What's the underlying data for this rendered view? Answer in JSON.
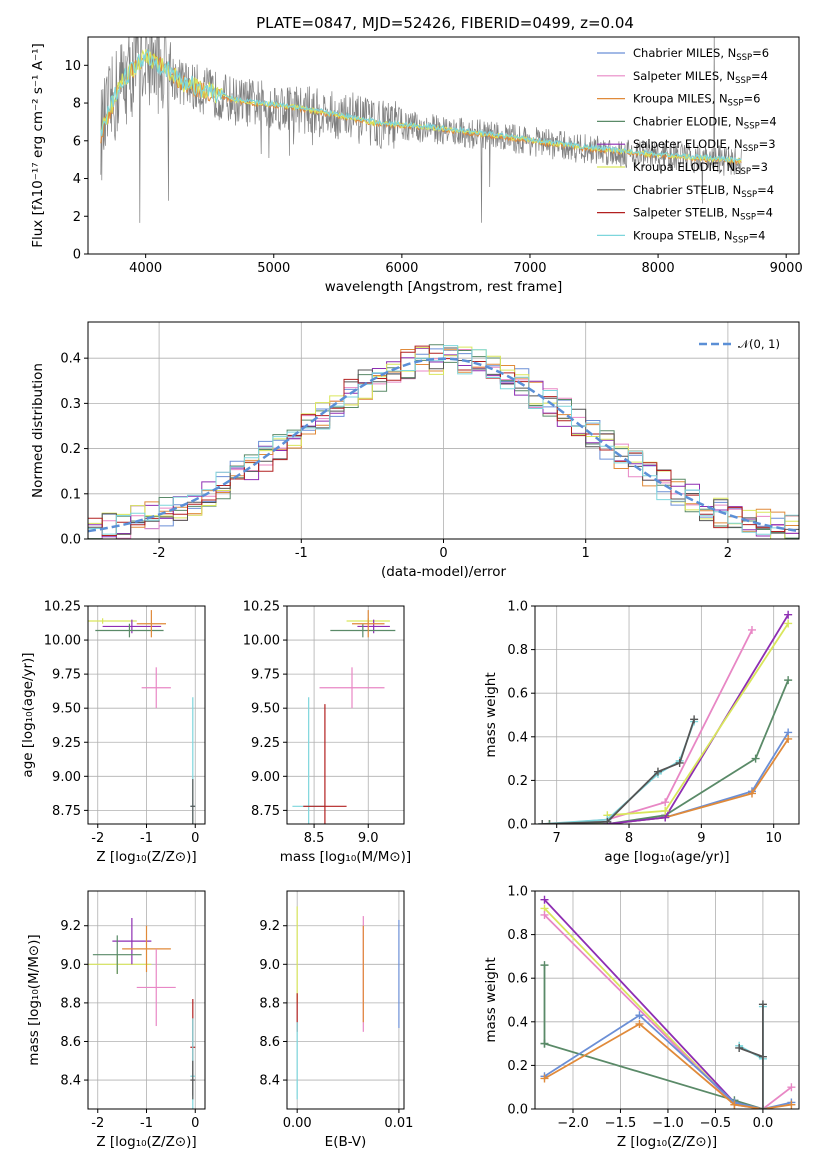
{
  "title": "PLATE=0847, MJD=52426, FIBERID=0499, z=0.04",
  "legend_entries": [
    {
      "label": "Chabrier MILES, N",
      "sub": "SSP",
      "tail": "=6",
      "color": "#6b8fd6"
    },
    {
      "label": "Salpeter MILES, N",
      "sub": "SSP",
      "tail": "=4",
      "color": "#e887c5"
    },
    {
      "label": "Kroupa MILES, N",
      "sub": "SSP",
      "tail": "=6",
      "color": "#e08a3a"
    },
    {
      "label": "Chabrier ELODIE, N",
      "sub": "SSP",
      "tail": "=4",
      "color": "#5a8a68"
    },
    {
      "label": "Salpeter ELODIE, N",
      "sub": "SSP",
      "tail": "=3",
      "color": "#8e2eb3"
    },
    {
      "label": "Kroupa ELODIE, N",
      "sub": "SSP",
      "tail": "=3",
      "color": "#d9e65c"
    },
    {
      "label": "Chabrier STELIB, N",
      "sub": "SSP",
      "tail": "=4",
      "color": "#555555"
    },
    {
      "label": "Salpeter STELIB, N",
      "sub": "SSP",
      "tail": "=4",
      "color": "#b22020"
    },
    {
      "label": "Kroupa STELIB, N",
      "sub": "SSP",
      "tail": "=4",
      "color": "#7dd6dc"
    }
  ],
  "chart_data": [
    {
      "type": "line",
      "name": "spectrum",
      "title": "PLATE=0847, MJD=52426, FIBERID=0499, z=0.04",
      "xlabel": "wavelength [Angstrom, rest frame]",
      "ylabel": "Flux [fλ10⁻¹⁷ erg cm⁻² s⁻¹ A⁻¹]",
      "xlim": [
        3550,
        9100
      ],
      "ylim": [
        0,
        11.5
      ],
      "xticks": [
        4000,
        5000,
        6000,
        7000,
        8000,
        9000
      ],
      "yticks": [
        0,
        2,
        4,
        6,
        8,
        10
      ],
      "model_continuum": {
        "x": [
          3650,
          3800,
          4000,
          4300,
          4700,
          5200,
          5800,
          6300,
          7000,
          7400,
          8000,
          8600
        ],
        "y": [
          6.3,
          9.0,
          10.5,
          9.0,
          8.1,
          7.7,
          6.9,
          6.6,
          6.0,
          5.6,
          5.2,
          4.9
        ]
      },
      "grid": false,
      "legend_placement": "top-right"
    },
    {
      "type": "histogram",
      "name": "residuals",
      "xlabel": "(data-model)/error",
      "ylabel": "Normed distribution",
      "xlim": [
        -2.5,
        2.5
      ],
      "ylim": [
        0,
        0.48
      ],
      "xticks": [
        -2,
        -1,
        0,
        1,
        2
      ],
      "yticks": [
        0.0,
        0.1,
        0.2,
        0.3,
        0.4
      ],
      "bin_width": 0.1,
      "reference_label": "𝒩(0, 1)",
      "reference_curve": "normal(0,1)",
      "grid": true,
      "legend_placement": "top-right"
    },
    {
      "type": "scatter",
      "name": "age-vs-metallicity",
      "xlabel": "Z [log₁₀(Z/Z⊙)]",
      "ylabel": "age  [log₁₀(age/yr)]",
      "xlim": [
        -2.2,
        0.2
      ],
      "ylim": [
        8.65,
        10.25
      ],
      "xticks": [
        -2,
        -1,
        0
      ],
      "yticks": [
        8.75,
        9.0,
        9.25,
        9.5,
        9.75,
        10.0,
        10.25
      ],
      "points": [
        {
          "x": -1.9,
          "y": 10.14,
          "xerr": 0.7,
          "yerr": 0.02,
          "series": 5
        },
        {
          "x": -1.3,
          "y": 10.1,
          "xerr": 0.6,
          "yerr": 0.05,
          "series": 4
        },
        {
          "x": -1.35,
          "y": 10.07,
          "xerr": 0.7,
          "yerr": 0.05,
          "series": 3
        },
        {
          "x": -0.9,
          "y": 10.12,
          "xerr": 0.3,
          "yerr": 0.1,
          "series": 2
        },
        {
          "x": -0.8,
          "y": 9.65,
          "xerr": 0.3,
          "yerr": 0.15,
          "series": 1
        },
        {
          "x": -0.05,
          "y": 8.78,
          "xerr": 0.05,
          "yerr": 0.8,
          "series": 8
        },
        {
          "x": -0.05,
          "y": 8.78,
          "xerr": 0.05,
          "yerr": 0.2,
          "series": 6
        }
      ],
      "grid": true
    },
    {
      "type": "scatter",
      "name": "age-vs-mass",
      "xlabel": "mass [log₁₀(M/M⊙)]",
      "ylabel": "",
      "xlim": [
        8.25,
        9.33
      ],
      "ylim": [
        8.65,
        10.25
      ],
      "xticks": [
        8.5,
        9.0
      ],
      "yticks": [
        8.75,
        9.0,
        9.25,
        9.5,
        9.75,
        10.0,
        10.25
      ],
      "points": [
        {
          "x": 9.0,
          "y": 10.14,
          "xerr": 0.2,
          "yerr": 0.02,
          "series": 5
        },
        {
          "x": 9.05,
          "y": 10.1,
          "xerr": 0.15,
          "yerr": 0.05,
          "series": 4
        },
        {
          "x": 8.95,
          "y": 10.07,
          "xerr": 0.3,
          "yerr": 0.05,
          "series": 3
        },
        {
          "x": 9.0,
          "y": 10.12,
          "xerr": 0.15,
          "yerr": 0.1,
          "series": 2
        },
        {
          "x": 8.85,
          "y": 9.65,
          "xerr": 0.3,
          "yerr": 0.15,
          "series": 1
        },
        {
          "x": 8.45,
          "y": 8.78,
          "xerr": 0.15,
          "yerr": 0.8,
          "series": 8
        },
        {
          "x": 8.6,
          "y": 8.78,
          "xerr": 0.2,
          "yerr": 0.75,
          "series": 7
        }
      ],
      "grid": true
    },
    {
      "type": "line",
      "name": "mass-weight-vs-age",
      "xlabel": "age  [log₁₀(age/yr)]",
      "ylabel": "mass weight",
      "xlim": [
        6.7,
        10.35
      ],
      "ylim": [
        0,
        1.0
      ],
      "xticks": [
        7,
        8,
        9,
        10
      ],
      "yticks": [
        0.0,
        0.2,
        0.4,
        0.6,
        0.8,
        1.0
      ],
      "series": [
        {
          "series": 0,
          "x": [
            6.9,
            7.7,
            8.5,
            9.7,
            10.2
          ],
          "y": [
            0.0,
            0.0,
            0.03,
            0.15,
            0.42
          ]
        },
        {
          "series": 1,
          "x": [
            6.9,
            7.7,
            8.5,
            9.7
          ],
          "y": [
            0.0,
            0.02,
            0.1,
            0.89
          ]
        },
        {
          "series": 2,
          "x": [
            6.9,
            7.7,
            8.5,
            9.7,
            10.2
          ],
          "y": [
            0.0,
            0.0,
            0.03,
            0.14,
            0.39
          ]
        },
        {
          "series": 3,
          "x": [
            6.9,
            7.7,
            8.5,
            9.75,
            10.2
          ],
          "y": [
            0.0,
            0.0,
            0.04,
            0.3,
            0.66
          ]
        },
        {
          "series": 4,
          "x": [
            7.7,
            8.5,
            10.2
          ],
          "y": [
            0.0,
            0.03,
            0.96
          ]
        },
        {
          "series": 5,
          "x": [
            7.7,
            8.5,
            10.2
          ],
          "y": [
            0.04,
            0.06,
            0.92
          ]
        },
        {
          "series": 8,
          "x": [
            6.8,
            7.7,
            8.4,
            8.7,
            8.9
          ],
          "y": [
            0.0,
            0.02,
            0.23,
            0.29,
            0.47
          ]
        },
        {
          "series": 6,
          "x": [
            6.8,
            7.7,
            8.4,
            8.7,
            8.9
          ],
          "y": [
            0.0,
            0.01,
            0.24,
            0.28,
            0.48
          ]
        }
      ],
      "grid": true
    },
    {
      "type": "scatter",
      "name": "mass-vs-metallicity",
      "xlabel": "Z [log₁₀(Z/Z⊙)]",
      "ylabel": "mass [log₁₀(M/M⊙)]",
      "xlim": [
        -2.2,
        0.2
      ],
      "ylim": [
        8.25,
        9.38
      ],
      "xticks": [
        -2,
        -1,
        0
      ],
      "yticks": [
        8.4,
        8.6,
        8.8,
        9.0,
        9.2
      ],
      "points": [
        {
          "x": -1.6,
          "y": 9.0,
          "xerr": 0.7,
          "yerr": 0.05,
          "series": 5
        },
        {
          "x": -1.3,
          "y": 9.12,
          "xerr": 0.4,
          "yerr": 0.12,
          "series": 4
        },
        {
          "x": -1.6,
          "y": 9.05,
          "xerr": 0.5,
          "yerr": 0.1,
          "series": 3
        },
        {
          "x": -1.0,
          "y": 9.08,
          "xerr": 0.5,
          "yerr": 0.12,
          "series": 2
        },
        {
          "x": -0.8,
          "y": 8.88,
          "xerr": 0.4,
          "yerr": 0.2,
          "series": 1
        },
        {
          "x": -0.05,
          "y": 8.57,
          "xerr": 0.05,
          "yerr": 0.25,
          "series": 7
        },
        {
          "x": -0.05,
          "y": 8.42,
          "xerr": 0.05,
          "yerr": 0.3,
          "series": 8
        },
        {
          "x": -0.05,
          "y": 8.4,
          "xerr": 0.05,
          "yerr": 0.1,
          "series": 6
        }
      ],
      "grid": true
    },
    {
      "type": "scatter",
      "name": "mass-vs-ebv",
      "xlabel": "E(B-V)",
      "ylabel": "",
      "xlim": [
        -0.001,
        0.0105
      ],
      "ylim": [
        8.25,
        9.38
      ],
      "xticks": [
        0.0,
        0.01
      ],
      "yticks": [
        8.4,
        8.6,
        8.8,
        9.0,
        9.2
      ],
      "points": [
        {
          "x": 0.0,
          "y": 9.05,
          "xerr": 0,
          "yerr": 0.25,
          "series": 5
        },
        {
          "x": 0.0,
          "y": 8.75,
          "xerr": 0,
          "yerr": 0.1,
          "series": 7
        },
        {
          "x": 0.0,
          "y": 8.5,
          "xerr": 0,
          "yerr": 0.2,
          "series": 8
        },
        {
          "x": 0.0065,
          "y": 8.95,
          "xerr": 0,
          "yerr": 0.3,
          "series": 1
        },
        {
          "x": 0.0065,
          "y": 8.95,
          "xerr": 0,
          "yerr": 0.25,
          "series": 2
        },
        {
          "x": 0.01,
          "y": 8.95,
          "xerr": 0,
          "yerr": 0.28,
          "series": 0
        }
      ],
      "grid": true
    },
    {
      "type": "line",
      "name": "mass-weight-vs-metallicity",
      "xlabel": "Z [log₁₀(Z/Z⊙)]",
      "ylabel": "mass weight",
      "xlim": [
        -2.4,
        0.38
      ],
      "ylim": [
        0,
        1.0
      ],
      "xticks": [
        -2.0,
        -1.5,
        -1.0,
        -0.5,
        0.0
      ],
      "yticks": [
        0.0,
        0.2,
        0.4,
        0.6,
        0.8,
        1.0
      ],
      "series": [
        {
          "series": 4,
          "x": [
            -2.3,
            -0.3,
            0.0
          ],
          "y": [
            0.96,
            0.03,
            0.0
          ]
        },
        {
          "series": 5,
          "x": [
            -2.3,
            -0.3,
            0.0
          ],
          "y": [
            0.92,
            0.02,
            0.0
          ]
        },
        {
          "series": 1,
          "x": [
            -2.3,
            -0.3,
            0.0,
            0.3
          ],
          "y": [
            0.89,
            0.02,
            0.0,
            0.1
          ]
        },
        {
          "series": 3,
          "x": [
            -2.3,
            -2.3,
            -2.3,
            -0.3,
            0.0
          ],
          "y": [
            0.66,
            0.3,
            0.3,
            0.04,
            0.0
          ]
        },
        {
          "series": 0,
          "x": [
            -2.3,
            -1.3,
            -0.3,
            0.0,
            0.3
          ],
          "y": [
            0.15,
            0.43,
            0.03,
            0.0,
            0.03
          ]
        },
        {
          "series": 2,
          "x": [
            -2.3,
            -1.3,
            -0.3,
            0.0,
            0.3
          ],
          "y": [
            0.14,
            0.39,
            0.02,
            0.0,
            0.02
          ]
        },
        {
          "series": 8,
          "x": [
            -0.25,
            0.0,
            0.0,
            0.0
          ],
          "y": [
            0.29,
            0.23,
            0.47,
            0.0
          ]
        },
        {
          "series": 6,
          "x": [
            -0.25,
            0.0,
            0.0,
            0.0
          ],
          "y": [
            0.28,
            0.24,
            0.48,
            0.0
          ]
        }
      ],
      "grid": true
    }
  ]
}
